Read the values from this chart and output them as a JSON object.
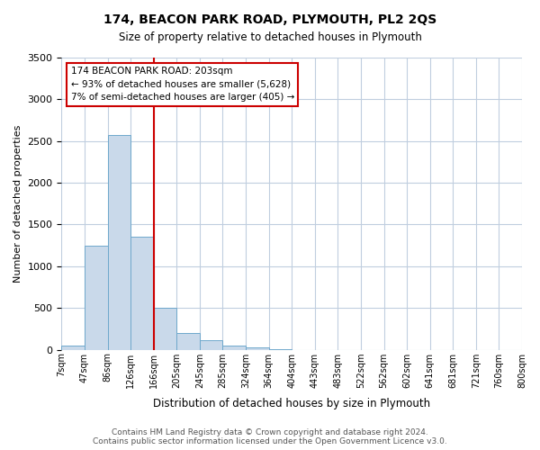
{
  "title": "174, BEACON PARK ROAD, PLYMOUTH, PL2 2QS",
  "subtitle": "Size of property relative to detached houses in Plymouth",
  "xlabel": "Distribution of detached houses by size in Plymouth",
  "ylabel": "Number of detached properties",
  "bin_labels": [
    "7sqm",
    "47sqm",
    "86sqm",
    "126sqm",
    "166sqm",
    "205sqm",
    "245sqm",
    "285sqm",
    "324sqm",
    "364sqm",
    "404sqm",
    "443sqm",
    "483sqm",
    "522sqm",
    "562sqm",
    "602sqm",
    "641sqm",
    "681sqm",
    "721sqm",
    "760sqm",
    "800sqm"
  ],
  "bar_values": [
    50,
    1250,
    2570,
    1350,
    500,
    200,
    110,
    50,
    30,
    10,
    0,
    0,
    0,
    0,
    0,
    0,
    0,
    0,
    0,
    0
  ],
  "bar_color": "#c9d9ea",
  "bar_edge_color": "#6fa8cc",
  "vline_x": 4,
  "vline_color": "#cc0000",
  "annotation_lines": [
    "174 BEACON PARK ROAD: 203sqm",
    "← 93% of detached houses are smaller (5,628)",
    "7% of semi-detached houses are larger (405) →"
  ],
  "annotation_box_color": "#cc0000",
  "ylim": [
    0,
    3500
  ],
  "yticks": [
    0,
    500,
    1000,
    1500,
    2000,
    2500,
    3000,
    3500
  ],
  "footer_line1": "Contains HM Land Registry data © Crown copyright and database right 2024.",
  "footer_line2": "Contains public sector information licensed under the Open Government Licence v3.0.",
  "background_color": "#ffffff",
  "grid_color": "#c0cedf"
}
